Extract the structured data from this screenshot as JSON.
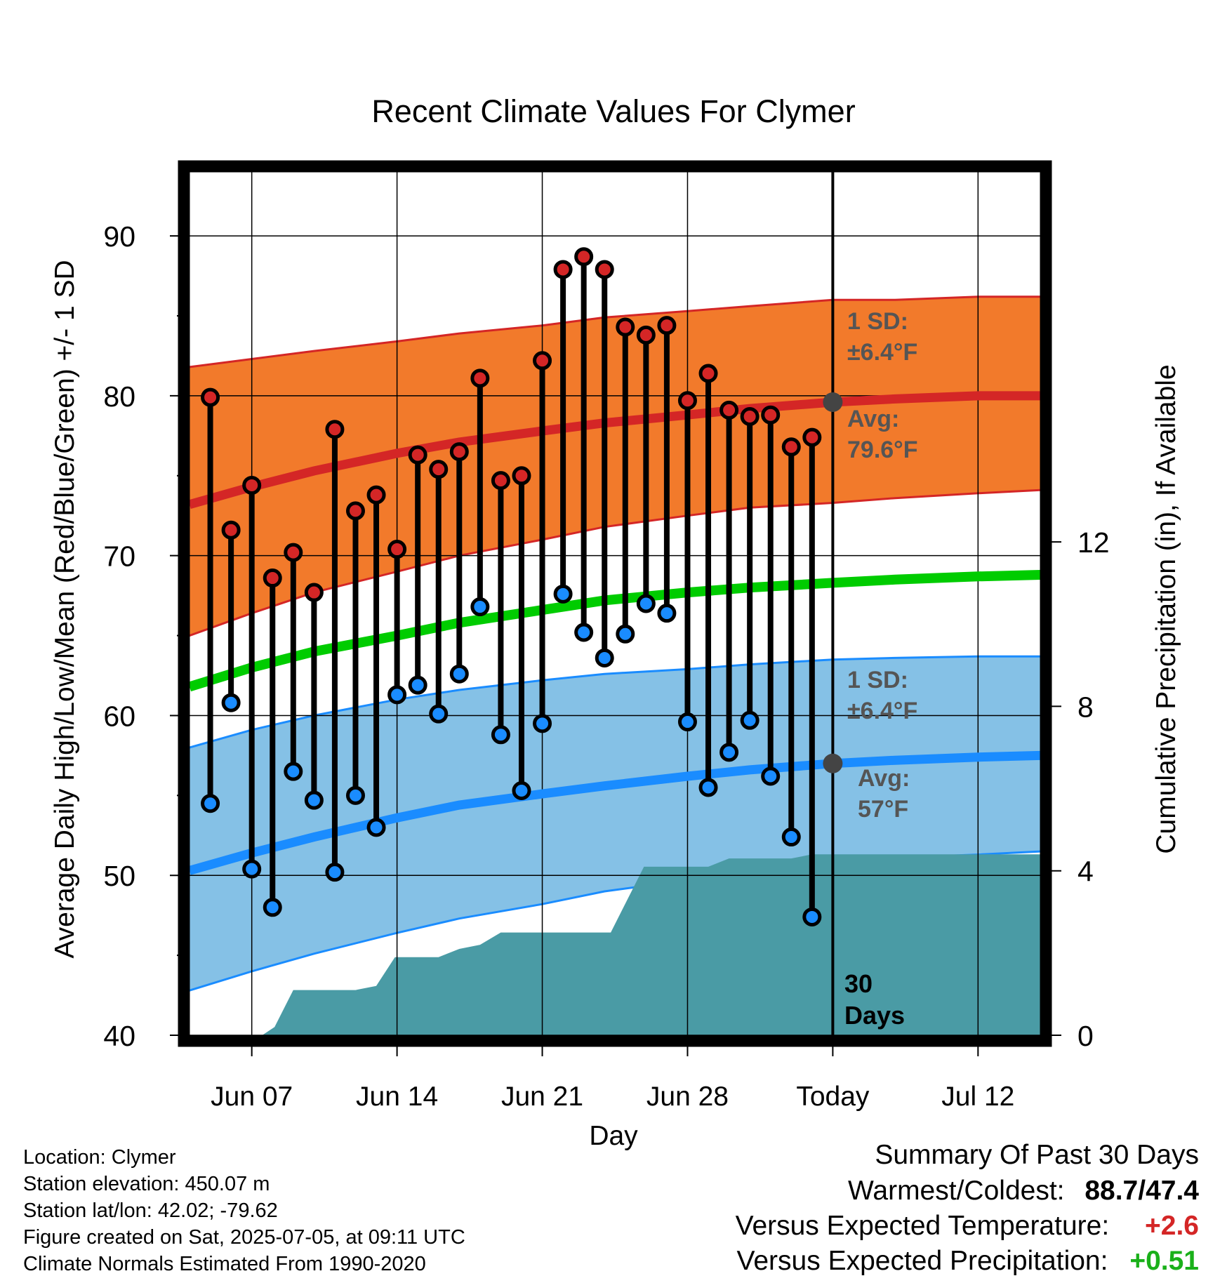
{
  "chart_data": {
    "type": "line",
    "title": "Recent Climate Values For Clymer",
    "xlabel": "Day",
    "ylabel": "Average Daily High/Low/Mean (Red/Blue/Green) +/- 1 SD",
    "ylabel2": "Cumulative Precipitation (in), If Available",
    "ylim": [
      40,
      94
    ],
    "ylim2": [
      0,
      21
    ],
    "y_ticks": [
      40,
      50,
      60,
      70,
      80,
      90
    ],
    "y2_ticks": [
      0,
      4,
      8,
      12
    ],
    "x_ticks": [
      {
        "day": 7,
        "label": "Jun 07"
      },
      {
        "day": 14,
        "label": "Jun 14"
      },
      {
        "day": 21,
        "label": "Jun 21"
      },
      {
        "day": 28,
        "label": "Jun 28"
      },
      {
        "day": 35,
        "label": "Today"
      },
      {
        "day": 42,
        "label": "Jul 12"
      }
    ],
    "xlim": [
      4,
      45
    ],
    "grid": true,
    "today_day": 35,
    "window_label": [
      "30",
      "Days"
    ],
    "days": [
      5,
      6,
      7,
      8,
      9,
      10,
      11,
      12,
      13,
      14,
      15,
      16,
      17,
      18,
      19,
      20,
      21,
      22,
      23,
      24,
      25,
      26,
      27,
      28,
      29,
      30,
      31,
      32,
      33,
      34
    ],
    "daily_high": [
      79.9,
      71.6,
      74.4,
      68.6,
      70.2,
      67.7,
      77.9,
      72.8,
      73.8,
      70.4,
      76.3,
      75.4,
      76.5,
      81.1,
      74.7,
      75.0,
      82.2,
      87.9,
      88.7,
      87.9,
      84.3,
      83.8,
      84.4,
      79.7,
      81.4,
      79.1,
      78.7,
      78.8,
      76.8,
      77.4
    ],
    "daily_low": [
      54.5,
      60.8,
      50.4,
      48.0,
      56.5,
      54.7,
      50.2,
      55.0,
      53.0,
      61.3,
      61.9,
      60.1,
      62.6,
      66.8,
      58.8,
      55.3,
      59.5,
      67.6,
      65.2,
      63.6,
      65.1,
      67.0,
      66.4,
      59.6,
      55.5,
      57.7,
      59.7,
      56.2,
      52.4,
      47.4
    ],
    "normal_curve_days": [
      4,
      7,
      10,
      14,
      17,
      21,
      24,
      28,
      31,
      35,
      38,
      42,
      45
    ],
    "normal_high_avg": [
      73.2,
      74.3,
      75.3,
      76.4,
      77.1,
      77.8,
      78.3,
      78.8,
      79.2,
      79.6,
      79.8,
      80.0,
      80.0
    ],
    "normal_high_sd_upper": [
      81.8,
      82.3,
      82.8,
      83.4,
      83.9,
      84.4,
      84.9,
      85.3,
      85.6,
      86.0,
      86.0,
      86.2,
      86.2
    ],
    "normal_high_sd_lower": [
      65.0,
      66.4,
      67.7,
      69.0,
      70.0,
      71.0,
      71.8,
      72.5,
      73.0,
      73.3,
      73.6,
      73.9,
      74.1
    ],
    "normal_mean": [
      61.8,
      63.0,
      64.0,
      65.0,
      65.8,
      66.6,
      67.2,
      67.7,
      68.0,
      68.3,
      68.5,
      68.7,
      68.8
    ],
    "normal_low_avg": [
      50.3,
      51.4,
      52.4,
      53.6,
      54.4,
      55.1,
      55.6,
      56.2,
      56.6,
      57.0,
      57.2,
      57.4,
      57.5
    ],
    "normal_low_sd_upper": [
      58.0,
      59.1,
      60.0,
      61.0,
      61.6,
      62.2,
      62.6,
      62.9,
      63.2,
      63.5,
      63.6,
      63.7,
      63.7
    ],
    "normal_low_sd_lower": [
      42.8,
      44.0,
      45.1,
      46.4,
      47.3,
      48.2,
      49.0,
      49.7,
      50.3,
      50.8,
      51.1,
      51.3,
      51.5
    ],
    "precip_days": [
      4,
      7.5,
      8.1,
      9,
      9.5,
      12,
      13,
      13.9,
      14.3,
      16,
      17,
      18,
      19,
      24.3,
      25.9,
      28,
      29,
      30,
      31,
      33,
      34,
      35,
      45
    ],
    "precip_cumulative": [
      0,
      0,
      0.2,
      1.1,
      1.1,
      1.1,
      1.2,
      1.9,
      1.9,
      1.9,
      2.1,
      2.2,
      2.5,
      2.5,
      4.1,
      4.1,
      4.1,
      4.3,
      4.3,
      4.3,
      4.4,
      4.4,
      4.4
    ],
    "colors": {
      "high_band": "#f27a2b",
      "high_avg": "#d42626",
      "high_edge": "#d42626",
      "mean": "#00cc00",
      "low_band": "#85c1e6",
      "low_avg": "#1a8cff",
      "low_edge": "#1a8cff",
      "precip": "#4a9ba5",
      "high_marker": "#d42626",
      "low_marker": "#1a8cff",
      "annot": "#555555",
      "today_dot": "#444444"
    },
    "annotations": {
      "high_sd_label": "1 SD:",
      "high_sd_value": "±6.4°F",
      "high_avg_label": "Avg:",
      "high_avg_value": "79.6°F",
      "low_sd_label": "1 SD:",
      "low_sd_value": "±6.4°F",
      "low_avg_label": "Avg:",
      "low_avg_value": "57°F"
    }
  },
  "footer": {
    "location": "Location: Clymer",
    "elevation": "Station elevation: 450.07 m",
    "latlon": "Station lat/lon: 42.02; -79.62",
    "created": "Figure created on Sat, 2025-07-05, at 09:11 UTC",
    "normals": "Climate Normals Estimated From 1990-2020"
  },
  "summary": {
    "heading": "Summary Of Past 30 Days",
    "warmest_label": "Warmest/Coldest:",
    "warmest_value": "88.7/47.4",
    "temp_label": "Versus Expected Temperature:",
    "temp_value": "+2.6",
    "temp_color": "#d42626",
    "precip_label": "Versus Expected Precipitation:",
    "precip_value": "+0.51",
    "precip_color": "#1ab01a"
  }
}
